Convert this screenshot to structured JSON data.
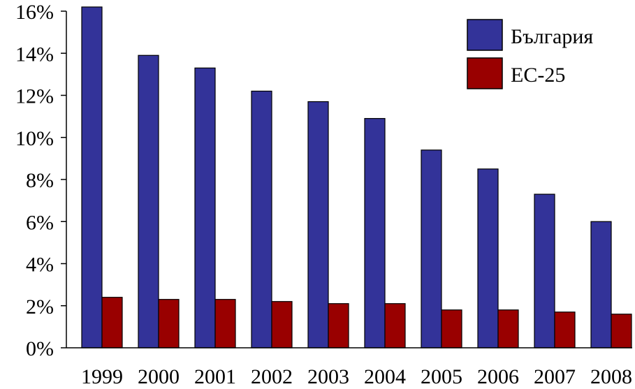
{
  "chart_data": {
    "type": "bar",
    "title": "",
    "xlabel": "",
    "ylabel": "",
    "categories": [
      "1999",
      "2000",
      "2001",
      "2002",
      "2003",
      "2004",
      "2005",
      "2006",
      "2007",
      "2008"
    ],
    "series": [
      {
        "name": "България",
        "color": "#333399",
        "values": [
          16.2,
          13.9,
          13.3,
          12.2,
          11.7,
          10.9,
          9.4,
          8.5,
          7.3,
          6.0
        ]
      },
      {
        "name": "ЕС-25",
        "color": "#990000",
        "values": [
          2.4,
          2.3,
          2.3,
          2.2,
          2.1,
          2.1,
          1.8,
          1.8,
          1.7,
          1.6
        ]
      }
    ],
    "ylim": [
      0,
      16
    ],
    "yticks": [
      0,
      2,
      4,
      6,
      8,
      10,
      12,
      14,
      16
    ],
    "ytick_format": "%",
    "grid": false,
    "legend_position": "top-right"
  }
}
